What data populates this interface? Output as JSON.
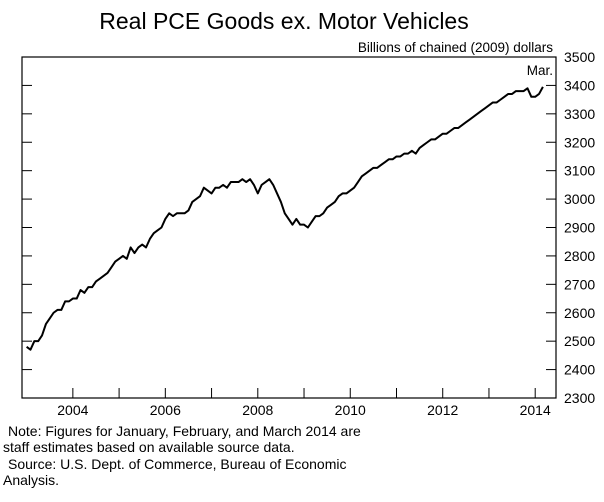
{
  "chart_data": {
    "type": "line",
    "title": "Real PCE Goods ex. Motor Vehicles",
    "y_axis_label": "Billions of chained (2009) dollars",
    "annotation": "Mar.",
    "notes": [
      "Note: Figures for January, February, and March 2014 are",
      "staff estimates based on available source data.",
      "Source:  U.S. Dept. of Commerce, Bureau of Economic",
      "Analysis."
    ],
    "x": [
      "2003-01",
      "2003-02",
      "2003-03",
      "2003-04",
      "2003-05",
      "2003-06",
      "2003-07",
      "2003-08",
      "2003-09",
      "2003-10",
      "2003-11",
      "2003-12",
      "2004-01",
      "2004-02",
      "2004-03",
      "2004-04",
      "2004-05",
      "2004-06",
      "2004-07",
      "2004-08",
      "2004-09",
      "2004-10",
      "2004-11",
      "2004-12",
      "2005-01",
      "2005-02",
      "2005-03",
      "2005-04",
      "2005-05",
      "2005-06",
      "2005-07",
      "2005-08",
      "2005-09",
      "2005-10",
      "2005-11",
      "2005-12",
      "2006-01",
      "2006-02",
      "2006-03",
      "2006-04",
      "2006-05",
      "2006-06",
      "2006-07",
      "2006-08",
      "2006-09",
      "2006-10",
      "2006-11",
      "2006-12",
      "2007-01",
      "2007-02",
      "2007-03",
      "2007-04",
      "2007-05",
      "2007-06",
      "2007-07",
      "2007-08",
      "2007-09",
      "2007-10",
      "2007-11",
      "2007-12",
      "2008-01",
      "2008-02",
      "2008-03",
      "2008-04",
      "2008-05",
      "2008-06",
      "2008-07",
      "2008-08",
      "2008-09",
      "2008-10",
      "2008-11",
      "2008-12",
      "2009-01",
      "2009-02",
      "2009-03",
      "2009-04",
      "2009-05",
      "2009-06",
      "2009-07",
      "2009-08",
      "2009-09",
      "2009-10",
      "2009-11",
      "2009-12",
      "2010-01",
      "2010-02",
      "2010-03",
      "2010-04",
      "2010-05",
      "2010-06",
      "2010-07",
      "2010-08",
      "2010-09",
      "2010-10",
      "2010-11",
      "2010-12",
      "2011-01",
      "2011-02",
      "2011-03",
      "2011-04",
      "2011-05",
      "2011-06",
      "2011-07",
      "2011-08",
      "2011-09",
      "2011-10",
      "2011-11",
      "2011-12",
      "2012-01",
      "2012-02",
      "2012-03",
      "2012-04",
      "2012-05",
      "2012-06",
      "2012-07",
      "2012-08",
      "2012-09",
      "2012-10",
      "2012-11",
      "2012-12",
      "2013-01",
      "2013-02",
      "2013-03",
      "2013-04",
      "2013-05",
      "2013-06",
      "2013-07",
      "2013-08",
      "2013-09",
      "2013-10",
      "2013-11",
      "2013-12",
      "2014-01",
      "2014-02",
      "2014-03"
    ],
    "series": [
      {
        "color": "#000000",
        "values": [
          2480,
          2470,
          2500,
          2500,
          2520,
          2560,
          2580,
          2600,
          2610,
          2610,
          2640,
          2640,
          2650,
          2650,
          2680,
          2670,
          2690,
          2690,
          2710,
          2720,
          2730,
          2740,
          2760,
          2780,
          2790,
          2800,
          2790,
          2830,
          2810,
          2830,
          2840,
          2830,
          2860,
          2880,
          2890,
          2900,
          2930,
          2950,
          2940,
          2950,
          2950,
          2950,
          2960,
          2990,
          3000,
          3010,
          3040,
          3030,
          3020,
          3040,
          3040,
          3050,
          3040,
          3060,
          3060,
          3060,
          3070,
          3060,
          3070,
          3050,
          3020,
          3050,
          3060,
          3070,
          3050,
          3020,
          2990,
          2950,
          2930,
          2910,
          2930,
          2910,
          2910,
          2900,
          2920,
          2940,
          2940,
          2950,
          2970,
          2980,
          2990,
          3010,
          3020,
          3020,
          3030,
          3040,
          3060,
          3080,
          3090,
          3100,
          3110,
          3110,
          3120,
          3130,
          3140,
          3140,
          3150,
          3150,
          3160,
          3160,
          3170,
          3160,
          3180,
          3190,
          3200,
          3210,
          3210,
          3220,
          3230,
          3230,
          3240,
          3250,
          3250,
          3260,
          3270,
          3280,
          3290,
          3300,
          3310,
          3320,
          3330,
          3340,
          3340,
          3350,
          3360,
          3370,
          3370,
          3380,
          3380,
          3380,
          3390,
          3360,
          3360,
          3370,
          3395
        ]
      }
    ],
    "xlim": [
      2002.9,
      2014.45
    ],
    "xticks": [
      2004,
      2006,
      2008,
      2010,
      2012,
      2014
    ],
    "xminorticks": [
      2005,
      2007,
      2009,
      2011,
      2013
    ],
    "ylim": [
      2300,
      3500
    ],
    "yticks": [
      2300,
      2400,
      2500,
      2600,
      2700,
      2800,
      2900,
      3000,
      3100,
      3200,
      3300,
      3400,
      3500
    ]
  }
}
